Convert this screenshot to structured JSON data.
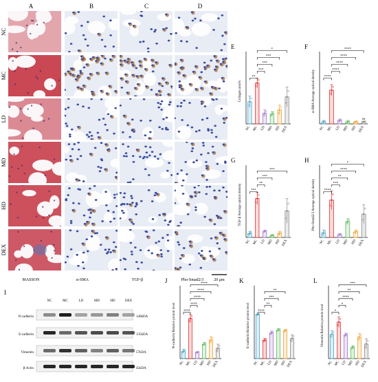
{
  "histology": {
    "column_letters": [
      "A",
      "B",
      "C",
      "D"
    ],
    "row_labels": [
      "NC",
      "MC",
      "LD",
      "MD",
      "HD",
      "DEX"
    ],
    "stain_labels": [
      "MASSON",
      "α-SMA",
      "TGF-β",
      "Pho-Smad2/3"
    ],
    "scale_bar": "20 μm"
  },
  "western": {
    "panel_letter": "I",
    "groups": [
      "NC",
      "MC",
      "LD",
      "MD",
      "HD",
      "DEX"
    ],
    "proteins": [
      {
        "name": "N-cadherin",
        "size": "140kDA",
        "intensity": [
          0.45,
          0.95,
          0.35,
          0.4,
          0.5,
          0.35
        ]
      },
      {
        "name": "E-cadherin",
        "size": "135kDA",
        "intensity": [
          0.9,
          0.6,
          0.7,
          0.75,
          0.75,
          0.7
        ]
      },
      {
        "name": "Vimentin",
        "size": "57kDA",
        "intensity": [
          0.6,
          0.85,
          0.65,
          0.5,
          0.65,
          0.55
        ]
      },
      {
        "name": "β-Actin",
        "size": "45kDA",
        "intensity": [
          0.9,
          0.9,
          0.9,
          0.9,
          0.9,
          0.9
        ]
      }
    ]
  },
  "colors": {
    "NC": "#4aa3c8",
    "MC": "#e03030",
    "LD": "#9f73c8",
    "MD": "#5cb85c",
    "HD": "#f0a030",
    "DEX": "#888888"
  },
  "chart_data": [
    {
      "letter": "E",
      "type": "bar",
      "ylabel": "Collagen area%",
      "categories": [
        "NC",
        "MC",
        "LD",
        "MD",
        "HD",
        "DEX"
      ],
      "values": [
        27,
        50,
        13,
        12,
        17,
        33
      ],
      "errors": [
        7,
        6,
        4,
        3,
        6,
        12
      ],
      "ylim": [
        0,
        80
      ],
      "brackets": [
        {
          "a": 0,
          "b": 1,
          "label": "**"
        },
        {
          "a": 1,
          "b": 2,
          "label": "***"
        },
        {
          "a": 1,
          "b": 3,
          "label": "***"
        },
        {
          "a": 1,
          "b": 4,
          "label": "***"
        },
        {
          "a": 1,
          "b": 5,
          "label": "*"
        }
      ]
    },
    {
      "letter": "F",
      "type": "bar",
      "ylabel": "α-SMA Average optical density",
      "categories": [
        "NC",
        "MC",
        "LD",
        "MD",
        "HD",
        "DEX"
      ],
      "values": [
        0.3,
        4.9,
        0.5,
        0.3,
        0.3,
        0.3
      ],
      "errors": [
        0.2,
        0.8,
        0.2,
        0.2,
        0.1,
        0.1
      ],
      "ylim": [
        0,
        9.5
      ],
      "dex_label": "ns",
      "brackets": [
        {
          "a": 0,
          "b": 1,
          "label": "****"
        },
        {
          "a": 1,
          "b": 2,
          "label": "****"
        },
        {
          "a": 1,
          "b": 3,
          "label": "****"
        },
        {
          "a": 1,
          "b": 4,
          "label": "****"
        },
        {
          "a": 1,
          "b": 5,
          "label": "****"
        }
      ]
    },
    {
      "letter": "G",
      "type": "bar",
      "ylabel": "TGF-β Average optical density",
      "categories": [
        "NC",
        "MC",
        "LD",
        "MD",
        "HD",
        "DEX"
      ],
      "values": [
        0.1,
        0.95,
        0.15,
        0.05,
        0.1,
        0.65
      ],
      "errors": [
        0.05,
        0.15,
        0.03,
        0.02,
        0.05,
        0.3
      ],
      "ylim": [
        0,
        1.6
      ],
      "brackets": [
        {
          "a": 0,
          "b": 1,
          "label": "***"
        },
        {
          "a": 1,
          "b": 2,
          "label": "**"
        },
        {
          "a": 1,
          "b": 3,
          "label": "***"
        },
        {
          "a": 1,
          "b": 5,
          "label": "***"
        }
      ]
    },
    {
      "letter": "H",
      "type": "bar",
      "ylabel": "Pho-Smad2/3 Average optical density",
      "categories": [
        "NC",
        "MC",
        "LD",
        "MD",
        "HD",
        "DEX"
      ],
      "values": [
        0.5,
        4.0,
        0.3,
        1.7,
        0.6,
        2.5
      ],
      "errors": [
        0.3,
        1.0,
        0.1,
        0.3,
        0.2,
        1.0
      ],
      "ylim": [
        0,
        7
      ],
      "brackets": [
        {
          "a": 0,
          "b": 1,
          "label": "****"
        },
        {
          "a": 1,
          "b": 2,
          "label": "***"
        },
        {
          "a": 1,
          "b": 3,
          "label": "**"
        },
        {
          "a": 1,
          "b": 4,
          "label": "****"
        },
        {
          "a": 1,
          "b": 5,
          "label": "*"
        }
      ]
    },
    {
      "letter": "J",
      "type": "bar",
      "ylabel": "N-cadherin Relative protein level",
      "categories": [
        "NC",
        "MC",
        "LD",
        "MD",
        "HD",
        "DEX"
      ],
      "values": [
        0.18,
        0.97,
        0.15,
        0.35,
        0.45,
        0.25
      ],
      "errors": [
        0.05,
        0.1,
        0.02,
        0.04,
        0.08,
        0.1
      ],
      "ylim": [
        0,
        1.6
      ],
      "brackets": [
        {
          "a": 0,
          "b": 1,
          "label": "****"
        },
        {
          "a": 1,
          "b": 2,
          "label": "****"
        },
        {
          "a": 1,
          "b": 3,
          "label": "****"
        },
        {
          "a": 1,
          "b": 4,
          "label": "****"
        },
        {
          "a": 1,
          "b": 5,
          "label": "****"
        }
      ]
    },
    {
      "letter": "K",
      "type": "bar",
      "ylabel": "E-cadherin Relative protein level",
      "categories": [
        "NC",
        "MC",
        "LD",
        "MD",
        "HD",
        "DEX"
      ],
      "values": [
        1.2,
        0.5,
        0.7,
        0.78,
        0.76,
        0.55
      ],
      "errors": [
        0.02,
        0.05,
        0.05,
        0.04,
        0.04,
        0.1
      ],
      "ylim": [
        0,
        1.8
      ],
      "brackets": [
        {
          "a": 0,
          "b": 1,
          "label": "****"
        },
        {
          "a": 1,
          "b": 2,
          "label": "**"
        },
        {
          "a": 1,
          "b": 3,
          "label": "***"
        },
        {
          "a": 1,
          "b": 4,
          "label": "**"
        }
      ]
    },
    {
      "letter": "L",
      "type": "bar",
      "ylabel": "Vimentin Relative protein level",
      "categories": [
        "NC",
        "MC",
        "LD",
        "MD",
        "HD",
        "DEX"
      ],
      "values": [
        0.7,
        1.05,
        0.68,
        0.32,
        0.62,
        0.42
      ],
      "errors": [
        0.1,
        0.15,
        0.05,
        0.05,
        0.1,
        0.15
      ],
      "ylim": [
        0,
        1.9
      ],
      "brackets": [
        {
          "a": 0,
          "b": 1,
          "label": "*"
        },
        {
          "a": 1,
          "b": 2,
          "label": "*"
        },
        {
          "a": 1,
          "b": 3,
          "label": "****"
        },
        {
          "a": 1,
          "b": 4,
          "label": "**"
        },
        {
          "a": 1,
          "b": 5,
          "label": "***"
        }
      ]
    }
  ]
}
